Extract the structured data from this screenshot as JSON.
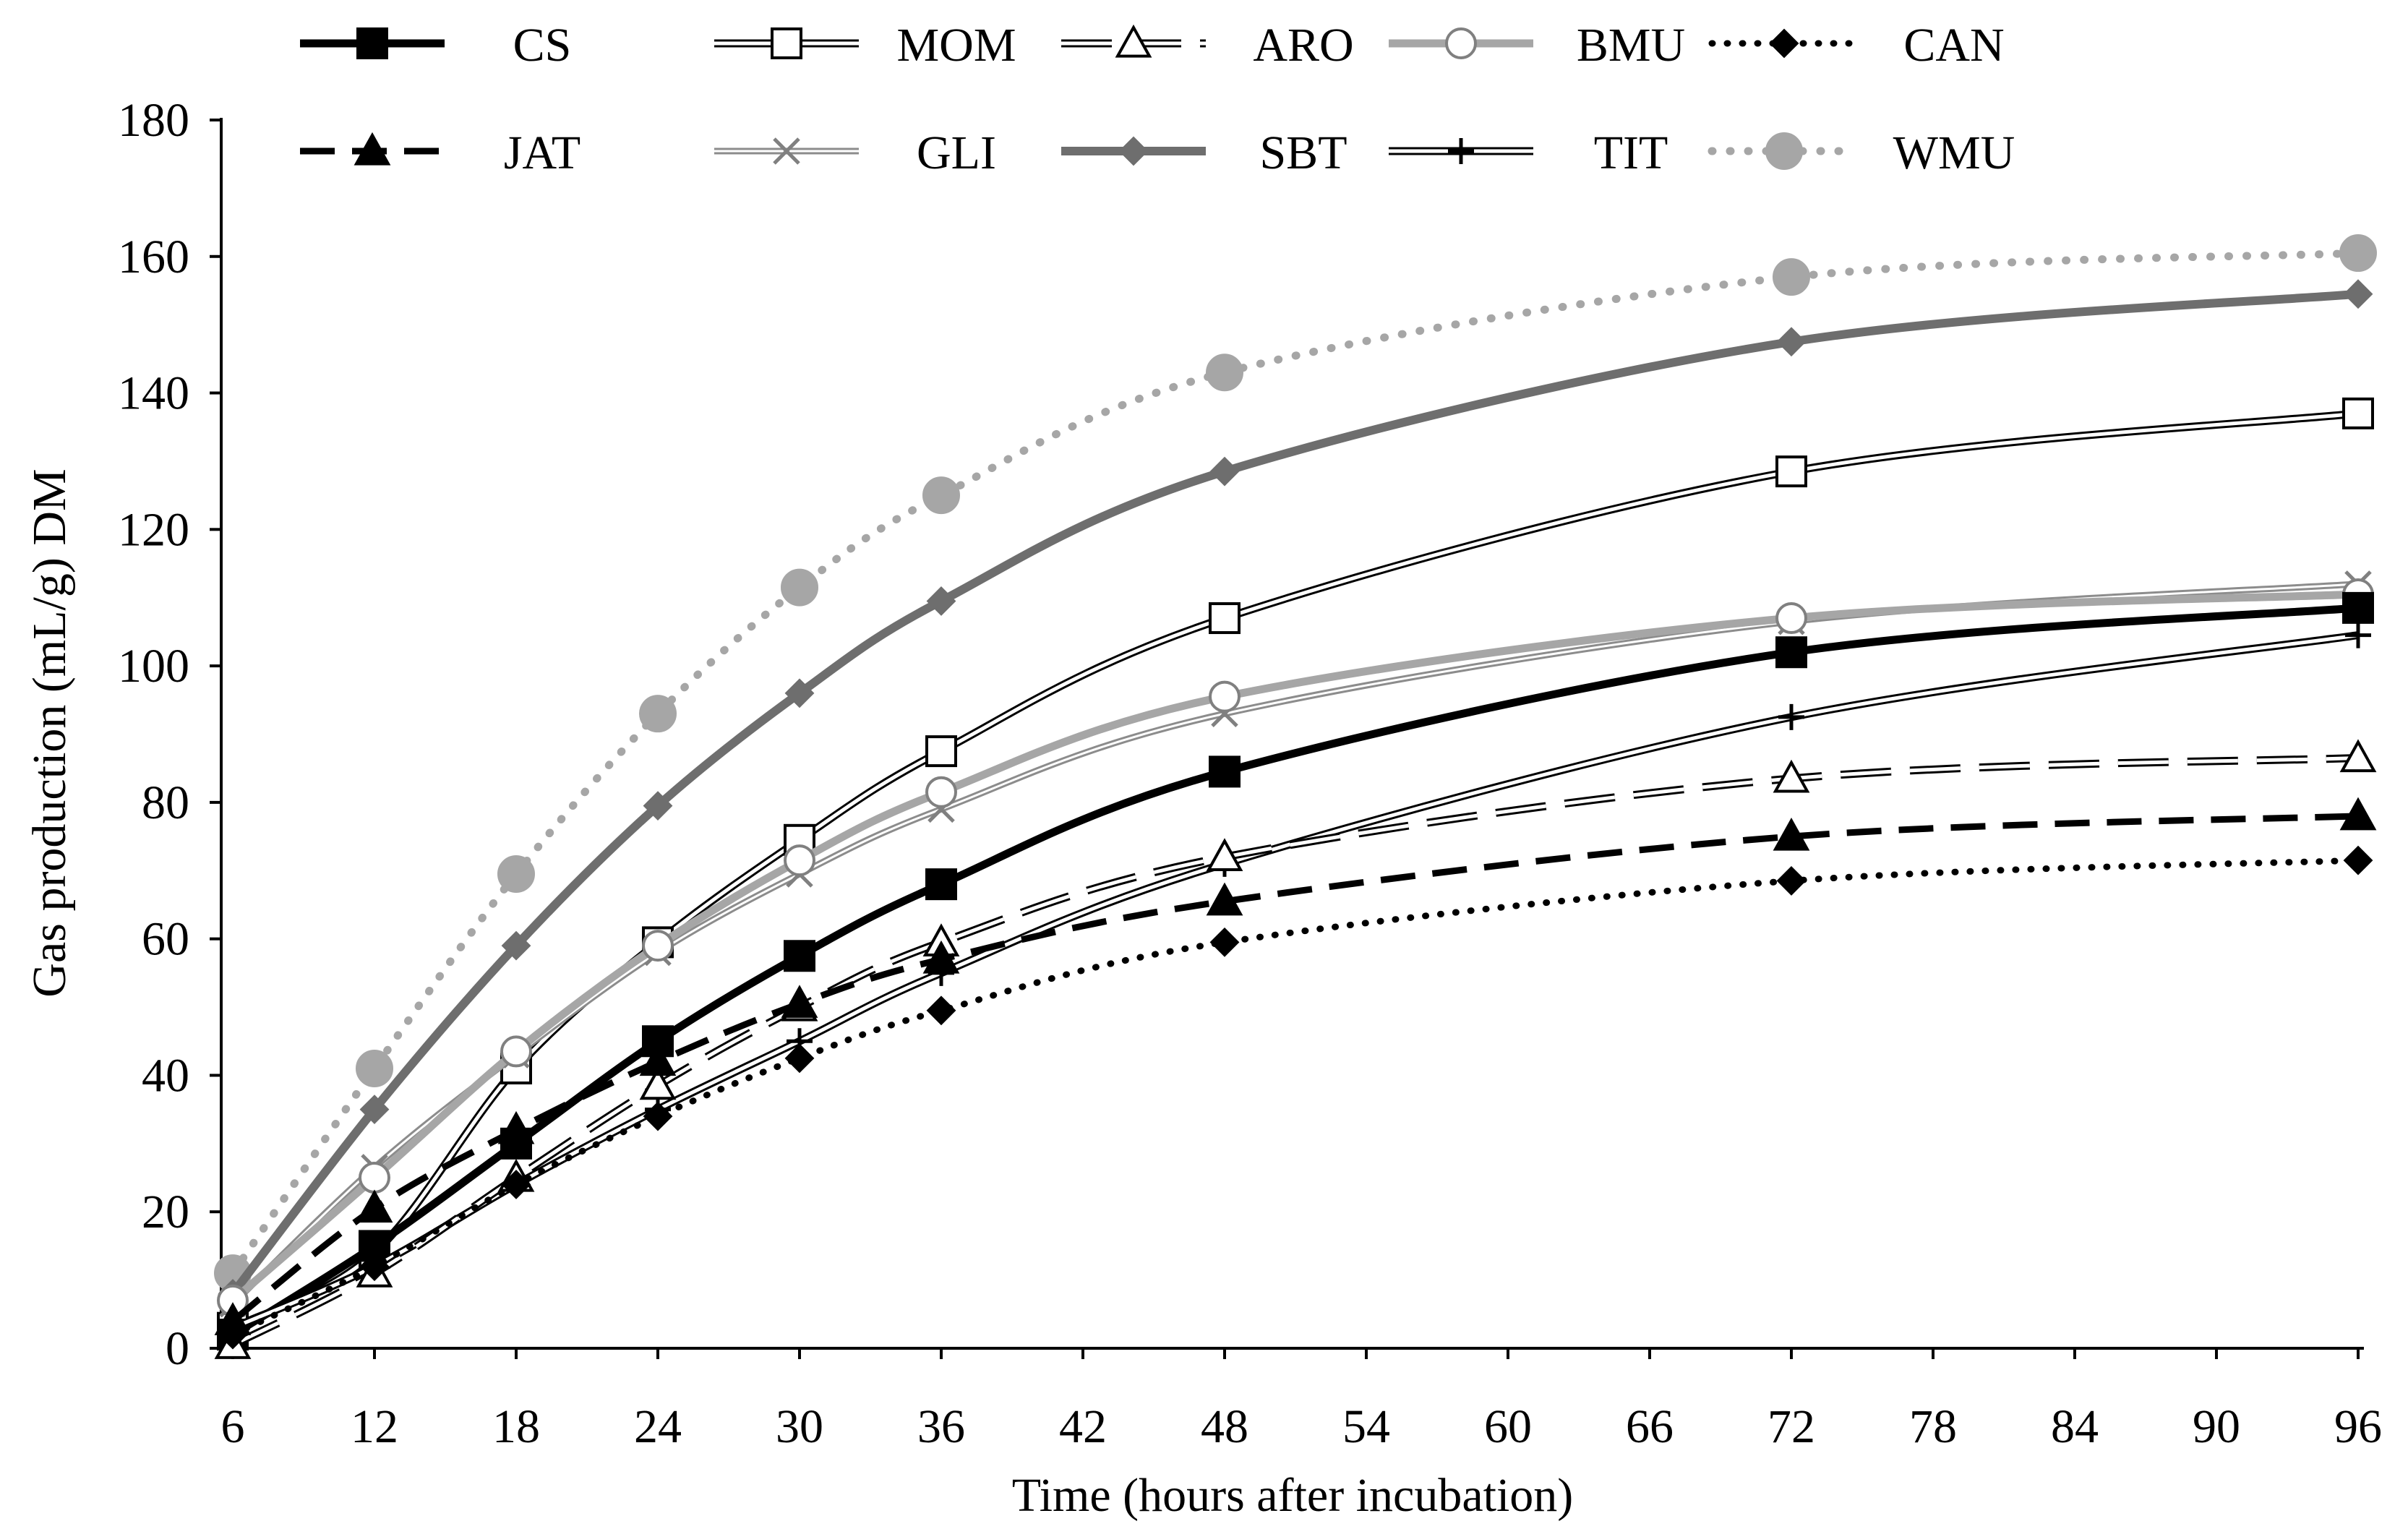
{
  "chart_data": {
    "type": "line",
    "xlabel": "Time (hours after incubation)",
    "ylabel": "Gas production (mL/g) DM",
    "xlim": [
      6,
      96
    ],
    "ylim": [
      0,
      180
    ],
    "x_ticks": [
      6,
      12,
      18,
      24,
      30,
      36,
      42,
      48,
      54,
      60,
      66,
      72,
      78,
      84,
      90,
      96
    ],
    "y_ticks": [
      0,
      20,
      40,
      60,
      80,
      100,
      120,
      140,
      160,
      180
    ],
    "x": [
      6,
      12,
      18,
      24,
      30,
      36,
      48,
      72,
      96
    ],
    "legend_position": "top",
    "grid": false,
    "series": [
      {
        "name": "CS",
        "values": [
          2,
          15,
          30,
          45,
          57.5,
          68,
          84.5,
          102,
          108.5
        ]
      },
      {
        "name": "MOM",
        "values": [
          3,
          14,
          41,
          59.5,
          74.5,
          87.5,
          107,
          128.5,
          137
        ]
      },
      {
        "name": "ARO",
        "values": [
          0.5,
          11,
          25,
          38.5,
          50,
          59.5,
          72,
          83.5,
          86.5
        ]
      },
      {
        "name": "BMU",
        "values": [
          7,
          25,
          43.5,
          59,
          71.5,
          81.5,
          95.5,
          107,
          110.5
        ]
      },
      {
        "name": "CAN",
        "values": [
          2,
          12,
          24,
          34,
          42.5,
          49.5,
          59.5,
          68.5,
          71.5
        ]
      },
      {
        "name": "JAT",
        "values": [
          4,
          20.5,
          32,
          42,
          50.5,
          57,
          65.5,
          75,
          78
        ]
      },
      {
        "name": "GLI",
        "values": [
          6.5,
          26.5,
          43,
          58,
          69.5,
          79,
          93,
          106.5,
          112
        ]
      },
      {
        "name": "SBT",
        "values": [
          8,
          35,
          59,
          79.5,
          96,
          109.5,
          128.5,
          147.5,
          154.5
        ]
      },
      {
        "name": "TIT",
        "values": [
          3,
          12,
          24,
          35,
          45,
          55,
          71,
          92.5,
          104.5
        ]
      },
      {
        "name": "WMU",
        "values": [
          11,
          41,
          69.5,
          93,
          111.5,
          125,
          143,
          157,
          160.5
        ]
      }
    ]
  }
}
